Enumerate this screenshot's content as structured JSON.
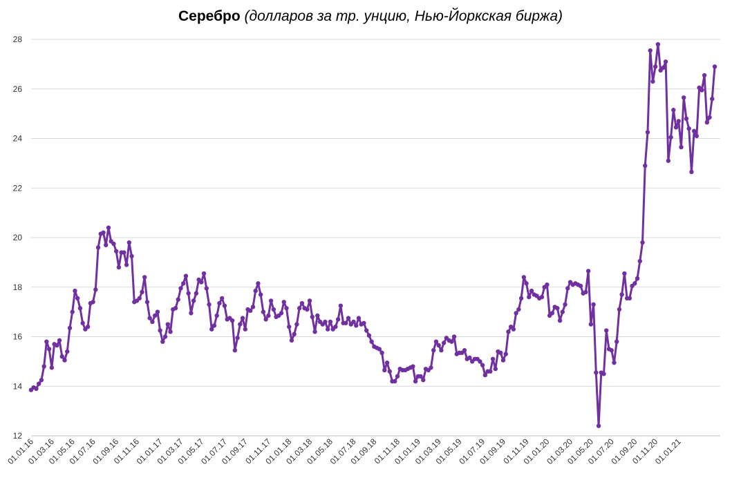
{
  "chart_data": {
    "type": "line",
    "title": "Серебро",
    "subtitle": "(долларов за тр. унцию, Нью-Йоркская биржа)",
    "xlabel": "",
    "ylabel": "",
    "ylim": [
      12,
      28
    ],
    "yticks": [
      12,
      14,
      16,
      18,
      20,
      22,
      24,
      26,
      28
    ],
    "grid": true,
    "legend": "none",
    "line_color": "#7030a0",
    "x_tick_labels": [
      "01.01.16",
      "01.03.16",
      "01.05.16",
      "01.07.16",
      "01.09.16",
      "01.11.16",
      "01.01.17",
      "01.03.17",
      "01.05.17",
      "01.07.17",
      "01.09.17",
      "01.11.17",
      "01.01.18",
      "01.03.18",
      "01.05.18",
      "01.07.18",
      "01.09.18",
      "01.11.18",
      "01.01.19",
      "01.03.19",
      "01.05.19",
      "01.07.19",
      "01.09.19",
      "01.11.19",
      "01.01.20",
      "01.03.20",
      "01.05.20",
      "01.07.20",
      "01.09.20",
      "01.11.20",
      "01.01.21"
    ],
    "x_tick_index": [
      0,
      8,
      16,
      24,
      33,
      41,
      50,
      58,
      66,
      75,
      83,
      92,
      100,
      108,
      116,
      125,
      133,
      142,
      150,
      158,
      166,
      175,
      183,
      192,
      200,
      209,
      217,
      225,
      234,
      242,
      251
    ],
    "series": [
      {
        "values": [
          13.85,
          13.95,
          13.9,
          14.1,
          14.25,
          14.8,
          15.8,
          15.5,
          14.75,
          15.7,
          15.65,
          15.85,
          15.2,
          15.05,
          15.4,
          16.35,
          17.0,
          17.85,
          17.55,
          17.15,
          16.55,
          16.3,
          16.4,
          17.35,
          17.4,
          17.9,
          19.6,
          20.15,
          20.2,
          19.7,
          20.4,
          19.85,
          19.75,
          19.45,
          18.8,
          19.4,
          19.4,
          18.9,
          19.8,
          19.25,
          17.4,
          17.45,
          17.55,
          17.8,
          18.4,
          17.4,
          16.75,
          16.6,
          16.85,
          17.0,
          16.25,
          15.8,
          16.0,
          16.5,
          16.2,
          17.1,
          17.15,
          17.5,
          17.95,
          18.15,
          18.45,
          17.75,
          16.95,
          17.45,
          17.75,
          18.3,
          18.2,
          18.55,
          17.95,
          17.3,
          16.3,
          16.45,
          16.85,
          17.35,
          17.55,
          17.25,
          16.7,
          16.75,
          16.65,
          15.45,
          15.95,
          16.5,
          16.75,
          16.3,
          17.1,
          17.05,
          17.2,
          17.85,
          18.15,
          17.7,
          17.0,
          16.7,
          16.85,
          17.45,
          17.1,
          16.8,
          16.85,
          16.95,
          17.4,
          17.15,
          16.4,
          15.85,
          16.1,
          16.5,
          17.15,
          17.35,
          17.15,
          17.1,
          17.45,
          16.8,
          16.2,
          16.85,
          16.6,
          16.5,
          16.6,
          16.3,
          16.6,
          16.3,
          16.4,
          16.7,
          17.25,
          16.55,
          16.55,
          16.75,
          16.5,
          16.6,
          16.45,
          16.75,
          16.5,
          16.55,
          16.25,
          16.05,
          15.8,
          15.6,
          15.55,
          15.5,
          15.35,
          14.65,
          14.95,
          14.6,
          14.2,
          14.2,
          14.4,
          14.7,
          14.65,
          14.65,
          14.7,
          14.75,
          14.8,
          14.2,
          14.4,
          14.4,
          14.25,
          14.7,
          14.65,
          14.75,
          15.45,
          15.8,
          15.65,
          15.45,
          15.75,
          15.95,
          15.85,
          15.8,
          16.0,
          15.3,
          15.35,
          15.35,
          15.45,
          15.1,
          15.15,
          15.0,
          15.1,
          15.1,
          15.0,
          14.85,
          14.45,
          14.6,
          14.6,
          15.1,
          14.7,
          15.4,
          15.35,
          15.05,
          15.3,
          16.2,
          16.4,
          16.3,
          16.95,
          17.1,
          17.55,
          18.4,
          18.15,
          17.6,
          17.85,
          17.7,
          17.65,
          17.55,
          17.6,
          18.0,
          18.1,
          16.85,
          16.95,
          17.2,
          17.15,
          16.65,
          17.0,
          17.3,
          17.95,
          18.2,
          18.1,
          18.15,
          18.1,
          18.05,
          17.75,
          17.8,
          18.65,
          16.5,
          17.3,
          14.55,
          12.4,
          14.55,
          14.5,
          16.25,
          15.5,
          15.45,
          14.95,
          15.8,
          17.1,
          17.7,
          18.55,
          17.55,
          17.55,
          18.05,
          18.15,
          18.35,
          19.05,
          19.8,
          22.9,
          24.25,
          27.55,
          26.3,
          26.9,
          27.8,
          26.75,
          26.85,
          27.1,
          23.1,
          24.05,
          25.15,
          24.45,
          24.7,
          23.65,
          25.65,
          24.8,
          24.4,
          22.65,
          24.3,
          24.1,
          26.05,
          25.95,
          26.55,
          24.65,
          24.85,
          25.6,
          26.9
        ]
      }
    ]
  }
}
